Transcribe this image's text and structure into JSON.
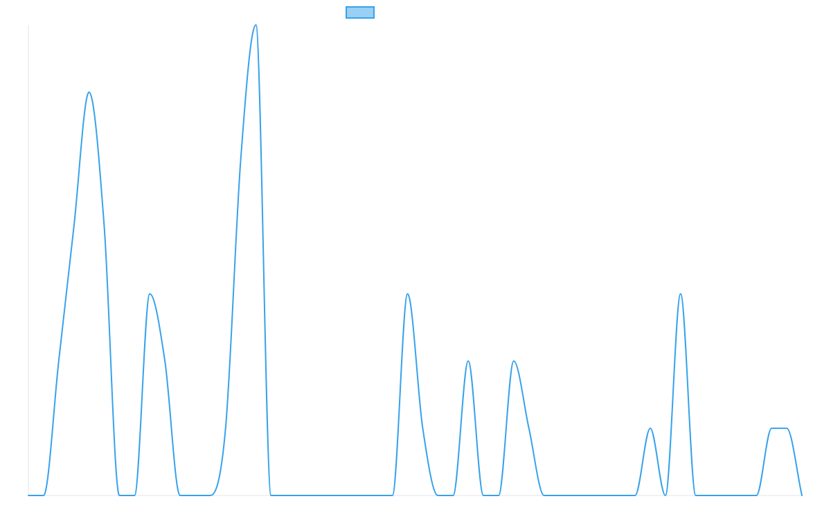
{
  "chart_data": {
    "type": "line",
    "title": "",
    "xlabel": "",
    "ylabel": "",
    "grid": false,
    "legend_position": "top-center",
    "colors": {
      "line": "#36a2eb",
      "fill": "#9ad0f5"
    },
    "ylim": [
      0,
      7
    ],
    "x": [
      0,
      1,
      2,
      3,
      4,
      5,
      6,
      7,
      8,
      9,
      10,
      11,
      12,
      13,
      14,
      15,
      16,
      17,
      18,
      19,
      20,
      21,
      22,
      23,
      24,
      25,
      26,
      27,
      28,
      29,
      30,
      31,
      32,
      33,
      34,
      35,
      36,
      37,
      38,
      39,
      40,
      41,
      42,
      43,
      44,
      45,
      46,
      47,
      48,
      49,
      50,
      51
    ],
    "series": [
      {
        "name": "",
        "values": [
          0,
          0,
          2,
          4,
          6,
          4,
          0,
          0,
          3,
          2,
          0,
          0,
          0,
          1,
          5,
          7,
          0,
          0,
          0,
          0,
          0,
          0,
          0,
          0,
          0,
          3,
          1,
          0,
          0,
          2,
          0,
          0,
          2,
          1,
          0,
          0,
          0,
          0,
          0,
          0,
          0,
          1,
          0,
          3,
          0,
          0,
          0,
          0,
          0,
          1,
          1,
          0
        ]
      }
    ]
  }
}
